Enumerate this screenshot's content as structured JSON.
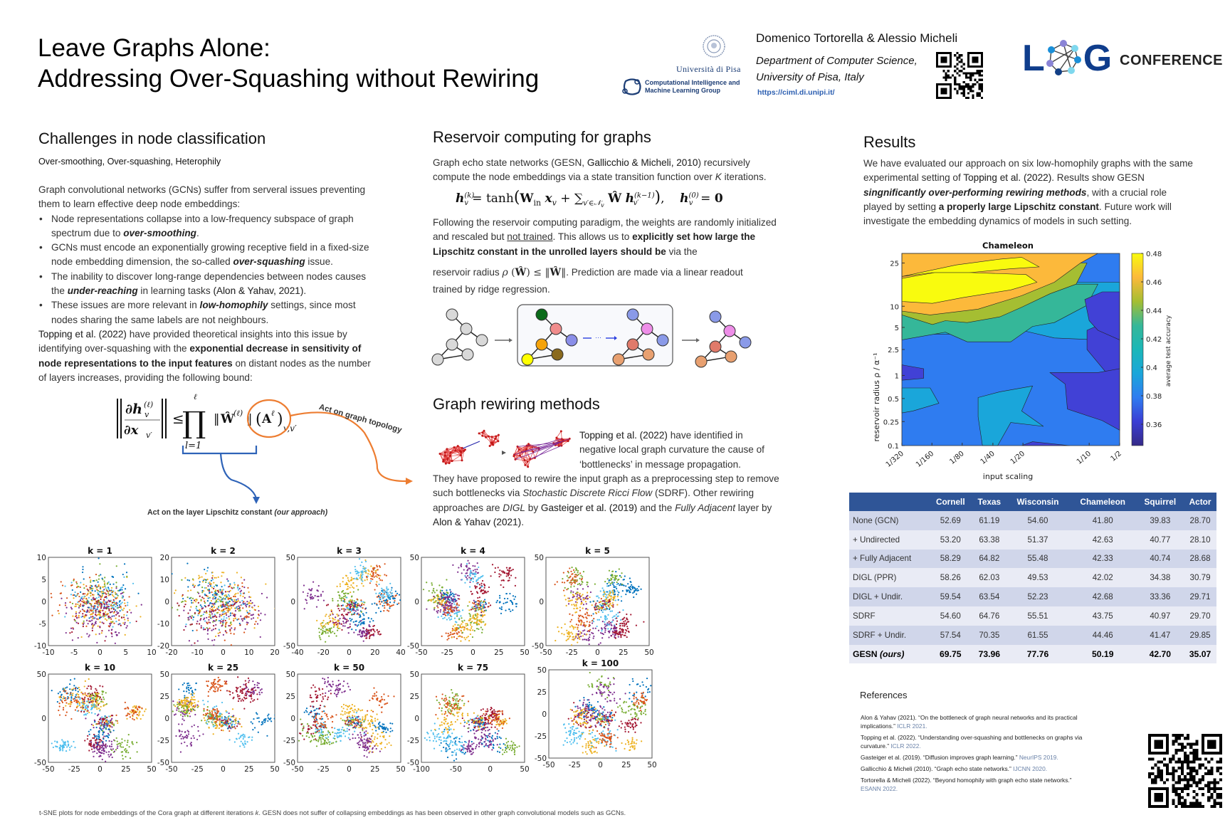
{
  "header": {
    "title_line1": "Leave Graphs Alone:",
    "title_line2": "Addressing Over-Squashing without Rewiring",
    "university": "Università di Pisa",
    "group_line1": "Computational Intelligence and",
    "group_line2": "Machine Learning Group",
    "authors": "Domenico Tortorella & Alessio Micheli",
    "affiliation_line1": "Department of Computer Science,",
    "affiliation_line2": "University of Pisa, Italy",
    "url": "https://ciml.di.unipi.it/",
    "conference_logo": "LOG",
    "conference_label": "CONFERENCE",
    "brand_color": "#0f3d8c"
  },
  "challenges": {
    "heading": "Challenges in node classification",
    "subheading": "Over-smoothing, Over-squashing, Heterophily",
    "intro": "Graph convolutional networks (GCNs) suffer from serveral issues preventing them to learn effective deep node embeddings:",
    "bullets": [
      {
        "pre": "Node representations collapse into a low-frequency subspace of graph spectrum due to ",
        "em": "over-smoothing",
        "post": "."
      },
      {
        "pre": "GCNs must encode an exponentially growing receptive field in a fixed-size node embedding dimension, the so-called ",
        "em": "over-squashing",
        "post": " issue."
      },
      {
        "pre": "The inability to discover long-range dependencies between nodes causes the ",
        "em": "under-reaching",
        "post": " in learning tasks ",
        "ref": "(Alon & Yahav, 2021)",
        "post2": "."
      },
      {
        "pre": "These issues are more relevant in ",
        "em": "low-homophily",
        "post": " settings, since most nodes sharing the same labels are not neighbours."
      }
    ],
    "para_ref": "Topping et al. (2022)",
    "para_pre": " have provided theoretical insights into this issue by identifying over-squashing with the ",
    "para_bold": "exponential decrease in sensitivity of node representations to the input features",
    "para_post": " on distant nodes as the number of layers increases, providing the following bound:",
    "annot_topology": "Act on graph topology",
    "annot_lipschitz": "Act on the layer Lipschitz constant",
    "annot_lipschitz_em": "(our approach)"
  },
  "reservoir": {
    "heading": "Reservoir computing for graphs",
    "p1_pre": "Graph echo state networks (GESN, ",
    "p1_ref": "Gallicchio & Micheli, 2010",
    "p1_post": ") recursively compute the node embeddings via a state transition function over ",
    "p1_k": "K",
    "p1_end": " iterations.",
    "p2_pre": "Following the reservoir computing paradigm, the weights are randomly initialized and rescaled but ",
    "p2_underline": "not trained",
    "p2_mid": ". This allows us to ",
    "p2_bold": "explicitly set how large the Lipschitz constant in the unrolled layers should be",
    "p2_post": " via the",
    "p3_pre": "reservoir radius",
    "p3_post": ". Prediction are made via a linear readout",
    "p4": "trained by ridge regression."
  },
  "rewiring": {
    "heading": "Graph rewiring methods",
    "p_ref": "Topping et al. (2022)",
    "p_a": " have identified in negative local graph curvature the cause of ‘bottlenecks’ in message propagation.",
    "p_b": "They have proposed to rewire the input graph as a preprocessing step to remove such bottlenecks via ",
    "p_sdrf_em": "Stochastic Discrete Ricci Flow",
    "p_c": " (SDRF). Other rewiring approaches are ",
    "p_digl_em": "DIGL",
    "p_d": " by ",
    "p_ref2": "Gasteiger et al. (2019)",
    "p_e": " and the ",
    "p_fa_em": "Fully Adjacent",
    "p_f": " layer by ",
    "p_ref3": "Alon & Yahav (2021)",
    "p_g": "."
  },
  "results": {
    "heading": "Results",
    "p_pre": "We have evaluated our approach on six low-homophily graphs with the same experimental setting of ",
    "p_ref": "Topping et al. (2022)",
    "p_mid": ". Results show GESN ",
    "p_bold_em": "singnificantly over-performing rewiring methods",
    "p_mid2": ", with a crucial role played by setting ",
    "p_bold": "a properly large Lipschitz constant",
    "p_post": ". Future work will investigate the embedding dynamics of models in such setting."
  },
  "chart_data": [
    {
      "type": "heatmap",
      "title": "Chameleon",
      "xlabel": "input scaling",
      "ylabel": "reservoir radius   ρ / α⁻¹",
      "x_ticks": [
        "1/320",
        "1/160",
        "1/80",
        "1/40",
        "1/20",
        "1/10",
        "1/2"
      ],
      "y_ticks": [
        "0.1",
        "0.25",
        "0.5",
        "1",
        "2.5",
        "5",
        "10",
        "25"
      ],
      "colorbar_label": "average test accuracy",
      "colorbar_ticks": [
        "0.36",
        "0.38",
        "0.4",
        "0.42",
        "0.44",
        "0.46",
        "0.48"
      ],
      "colorbar_range": [
        0.345,
        0.48
      ],
      "description": "Filled contour: highest accuracy (~0.48, yellow) at small input scaling and radius ~10-20; accuracy decreases toward larger input scaling and smaller radius (~0.36, dark blue)",
      "levels": [
        {
          "value": 0.47,
          "color": "#f9fb0e"
        },
        {
          "value": 0.455,
          "color": "#fcb93b"
        },
        {
          "value": 0.44,
          "color": "#a5be32"
        },
        {
          "value": 0.42,
          "color": "#35b799"
        },
        {
          "value": 0.395,
          "color": "#1aa6da"
        },
        {
          "value": 0.38,
          "color": "#2f7cf0"
        },
        {
          "value": 0.365,
          "color": "#4141d6"
        },
        {
          "value": 0.35,
          "color": "#352a87"
        }
      ]
    },
    {
      "type": "table",
      "columns": [
        "",
        "Cornell",
        "Texas",
        "Wisconsin",
        "Chameleon",
        "Squirrel",
        "Actor"
      ],
      "rows": [
        [
          "None (GCN)",
          "52.69",
          "61.19",
          "54.60",
          "41.80",
          "39.83",
          "28.70"
        ],
        [
          "+ Undirected",
          "53.20",
          "63.38",
          "51.37",
          "42.63",
          "40.77",
          "28.10"
        ],
        [
          "+ Fully Adjacent",
          "58.29",
          "64.82",
          "55.48",
          "42.33",
          "40.74",
          "28.68"
        ],
        [
          "DIGL (PPR)",
          "58.26",
          "62.03",
          "49.53",
          "42.02",
          "34.38",
          "30.79"
        ],
        [
          "DIGL + Undir.",
          "59.54",
          "63.54",
          "52.23",
          "42.68",
          "33.36",
          "29.71"
        ],
        [
          "SDRF",
          "54.60",
          "64.76",
          "55.51",
          "43.75",
          "40.97",
          "29.70"
        ],
        [
          "SDRF + Undir.",
          "57.54",
          "70.35",
          "61.55",
          "44.46",
          "41.47",
          "29.85"
        ]
      ],
      "ours_label": "GESN",
      "ours_em": "(ours)",
      "ours_values": [
        "69.75",
        "73.96",
        "77.76",
        "50.19",
        "42.70",
        "35.07"
      ],
      "header_color": "#2f5597"
    },
    {
      "type": "scatter",
      "title": "t-SNE plots of Cora node embeddings",
      "class_colors": [
        "#7e2f8e",
        "#edb120",
        "#77ac30",
        "#4dbeee",
        "#0072bd",
        "#a2142f",
        "#d95319"
      ],
      "panels": [
        {
          "title": "k = 1",
          "xlim": [
            -10,
            10
          ],
          "ylim": [
            -10,
            10
          ],
          "xticks": [
            "-10",
            "-5",
            "0",
            "5",
            "10"
          ],
          "yticks": [
            "-10",
            "-5",
            "0",
            "5",
            "10"
          ]
        },
        {
          "title": "k = 2",
          "xlim": [
            -20,
            20
          ],
          "ylim": [
            -20,
            20
          ],
          "xticks": [
            "-20",
            "-10",
            "0",
            "10",
            "20"
          ],
          "yticks": [
            "-20",
            "-10",
            "0",
            "10",
            "20"
          ]
        },
        {
          "title": "k = 3",
          "xlim": [
            -55,
            40
          ],
          "ylim": [
            -50,
            50
          ],
          "xticks": [
            "-40",
            "-20",
            "0",
            "20",
            "40"
          ],
          "yticks": [
            "-50",
            "0",
            "50"
          ]
        },
        {
          "title": "k = 4",
          "xlim": [
            -50,
            50
          ],
          "ylim": [
            -50,
            50
          ],
          "xticks": [
            "-50",
            "-25",
            "0",
            "25",
            "50"
          ],
          "yticks": [
            "-50",
            "0",
            "50"
          ]
        },
        {
          "title": "k = 5",
          "xlim": [
            -50,
            50
          ],
          "ylim": [
            -50,
            50
          ],
          "xticks": [
            "-50",
            "-25",
            "0",
            "25",
            "50"
          ],
          "yticks": [
            "-50",
            "0",
            "50"
          ]
        },
        {
          "title": "k = 10",
          "xlim": [
            -50,
            50
          ],
          "ylim": [
            -50,
            50
          ],
          "xticks": [
            "-50",
            "-25",
            "0",
            "25",
            "50"
          ],
          "yticks": [
            "-50",
            "0",
            "50"
          ]
        },
        {
          "title": "k = 25",
          "xlim": [
            -50,
            50
          ],
          "ylim": [
            -50,
            50
          ],
          "xticks": [
            "-50",
            "-25",
            "0",
            "25",
            "50"
          ],
          "yticks": [
            "-50",
            "-25",
            "0",
            "25",
            "50"
          ]
        },
        {
          "title": "k = 50",
          "xlim": [
            -50,
            50
          ],
          "ylim": [
            -50,
            50
          ],
          "xticks": [
            "-50",
            "-25",
            "0",
            "25",
            "50"
          ],
          "yticks": [
            "-50",
            "-25",
            "0",
            "25",
            "50"
          ]
        },
        {
          "title": "k = 75",
          "xlim": [
            -100,
            50
          ],
          "ylim": [
            -50,
            50
          ],
          "xticks": [
            "-100",
            "-50",
            "0",
            "50"
          ],
          "yticks": [
            "-50",
            "-25",
            "0",
            "25",
            "50"
          ]
        },
        {
          "title": "k = 100",
          "xlim": [
            -50,
            50
          ],
          "ylim": [
            -50,
            50
          ],
          "xticks": [
            "-50",
            "-25",
            "0",
            "25",
            "50"
          ],
          "yticks": [
            "-50",
            "-25",
            "0",
            "25",
            "50"
          ]
        }
      ]
    }
  ],
  "tsne_caption_pre": "t-SNE plots for node embeddings of the Cora graph at different iterations ",
  "tsne_caption_k": "k",
  "tsne_caption_post": ". GESN does not suffer of collapsing embeddings as has been observed in other graph convolutional models such as GCNs.",
  "references": {
    "heading": "References",
    "items": [
      {
        "text": "Alon & Yahav (2021). “On the bottleneck of graph neural networks and its practical implications.” ",
        "venue": "ICLR 2021."
      },
      {
        "text": "Topping et al. (2022). “Understanding over-squashing and bottlenecks on graphs via curvature.” ",
        "venue": "ICLR 2022."
      },
      {
        "text": "Gasteiger et al. (2019). “Diffusion improves graph learning.” ",
        "venue": "NeurIPS 2019."
      },
      {
        "text": "Gallicchio & Micheli (2010). “Graph echo state networks.” ",
        "venue": "IJCNN 2020."
      },
      {
        "text": "Tortorella & Micheli (2022). “Beyond homophily with graph echo state networks.” ",
        "venue": "ESANN 2022."
      }
    ]
  }
}
